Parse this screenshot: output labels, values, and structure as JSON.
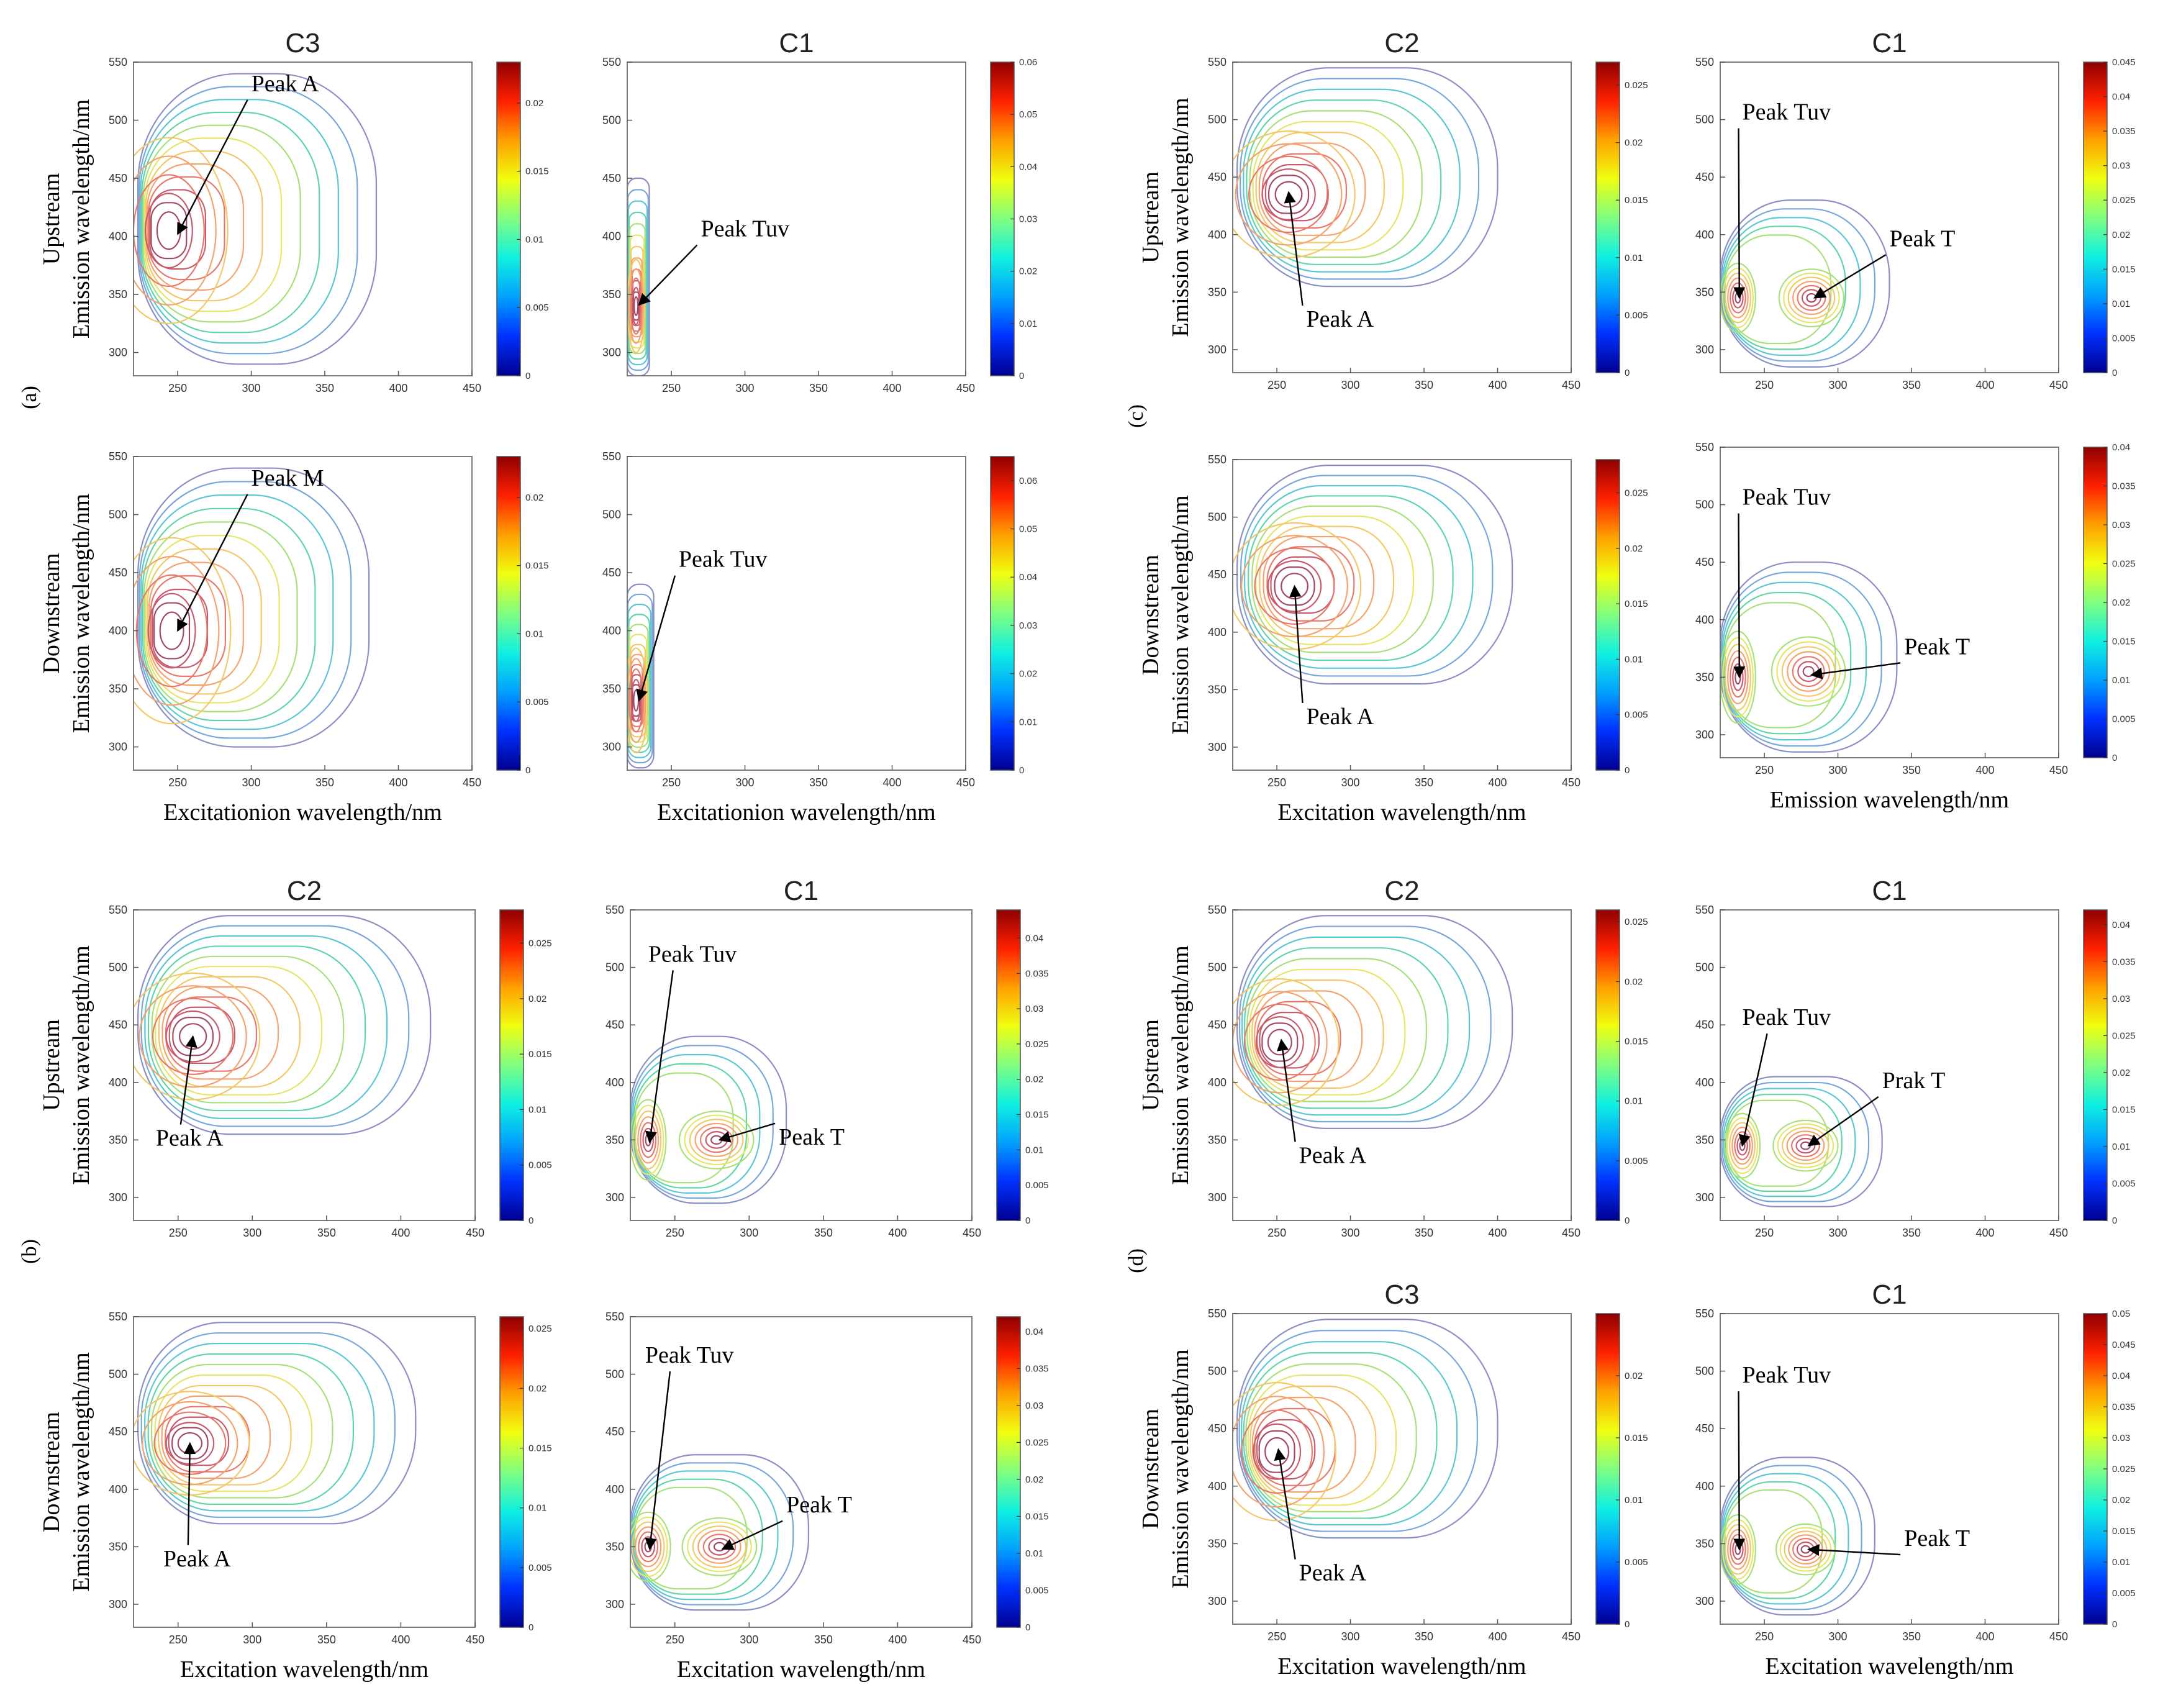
{
  "figure": {
    "background": "#ffffff",
    "group_labels": [
      "(a)",
      "(b)",
      "(c)",
      "(d)"
    ],
    "contour_palette": [
      "#8a8fc4",
      "#7aa6dc",
      "#5cc7d4",
      "#60d6a8",
      "#a9e07a",
      "#e6e56a",
      "#f2c86a",
      "#f4a36e",
      "#e9786c",
      "#c85a6e",
      "#a44a66"
    ],
    "colorbar_colors": [
      "#00008f",
      "#0030ff",
      "#00a0ff",
      "#10f0e0",
      "#80ff80",
      "#f0ff10",
      "#ffa000",
      "#ff2000",
      "#8f0000"
    ]
  },
  "chart_data": [
    {
      "id": "a1",
      "group": "a",
      "type": "contour",
      "title": "C3",
      "row_label": "Upstream",
      "ylabel": "Emission wavelength/nm",
      "xlabel": "",
      "xlim": [
        220,
        450
      ],
      "ylim": [
        280,
        550
      ],
      "xticks": [
        250,
        300,
        350,
        400,
        450
      ],
      "yticks": [
        300,
        350,
        400,
        450,
        500,
        550
      ],
      "colorbar": {
        "range": [
          0,
          0.023
        ],
        "ticks": [
          "0",
          "0.005",
          "0.01",
          "0.015",
          "0.02"
        ]
      },
      "peaks": [
        {
          "x": 244,
          "y": 405,
          "rx": 40,
          "ry": 80
        }
      ],
      "outer": {
        "x0": 223,
        "x1": 385,
        "y0": 290,
        "y1": 540
      },
      "annotations": [
        {
          "text": "Peak A",
          "tx": 300,
          "ty": 525,
          "ax": 250,
          "ay": 402
        }
      ]
    },
    {
      "id": "a2",
      "group": "a",
      "type": "contour",
      "title": "C1",
      "row_label": "",
      "ylabel": "",
      "xlabel": "",
      "xlim": [
        220,
        450
      ],
      "ylim": [
        280,
        550
      ],
      "xticks": [
        250,
        300,
        350,
        400,
        450
      ],
      "yticks": [
        300,
        350,
        400,
        450,
        500,
        550
      ],
      "colorbar": {
        "range": [
          0,
          0.06
        ],
        "ticks": [
          "0",
          "0.01",
          "0.02",
          "0.03",
          "0.04",
          "0.05",
          "0.06"
        ]
      },
      "peaks": [
        {
          "x": 226,
          "y": 340,
          "rx": 6,
          "ry": 40
        }
      ],
      "outer": {
        "x0": 220,
        "x1": 235,
        "y0": 280,
        "y1": 450
      },
      "annotations": [
        {
          "text": "Peak Tuv",
          "tx": 270,
          "ty": 400,
          "ax": 228,
          "ay": 341
        }
      ]
    },
    {
      "id": "a3",
      "group": "a",
      "type": "contour",
      "title": "",
      "row_label": "Downstream",
      "ylabel": "Emission wavelength/nm",
      "xlabel": "Excitationion wavelength/nm",
      "xlim": [
        220,
        450
      ],
      "ylim": [
        280,
        550
      ],
      "xticks": [
        250,
        300,
        350,
        400,
        450
      ],
      "yticks": [
        300,
        350,
        400,
        450,
        500,
        550
      ],
      "colorbar": {
        "range": [
          0,
          0.023
        ],
        "ticks": [
          "0",
          "0.005",
          "0.01",
          "0.015",
          "0.02"
        ]
      },
      "peaks": [
        {
          "x": 246,
          "y": 400,
          "rx": 40,
          "ry": 80
        }
      ],
      "outer": {
        "x0": 223,
        "x1": 380,
        "y0": 300,
        "y1": 540
      },
      "annotations": [
        {
          "text": "Peak M",
          "tx": 300,
          "ty": 525,
          "ax": 250,
          "ay": 400
        }
      ]
    },
    {
      "id": "a4",
      "group": "a",
      "type": "contour",
      "title": "",
      "row_label": "",
      "ylabel": "",
      "xlabel": "Excitationion wavelength/nm",
      "xlim": [
        220,
        450
      ],
      "ylim": [
        280,
        550
      ],
      "xticks": [
        250,
        300,
        350,
        400,
        450
      ],
      "yticks": [
        300,
        350,
        400,
        450,
        500,
        550
      ],
      "colorbar": {
        "range": [
          0,
          0.065
        ],
        "ticks": [
          "0",
          "0.01",
          "0.02",
          "0.03",
          "0.04",
          "0.05",
          "0.06"
        ]
      },
      "peaks": [
        {
          "x": 226,
          "y": 340,
          "rx": 8,
          "ry": 45
        }
      ],
      "outer": {
        "x0": 220,
        "x1": 238,
        "y0": 282,
        "y1": 440
      },
      "annotations": [
        {
          "text": "Peak Tuv",
          "tx": 255,
          "ty": 455,
          "ax": 228,
          "ay": 340
        }
      ]
    },
    {
      "id": "b1",
      "group": "b",
      "type": "contour",
      "title": "C2",
      "row_label": "Upstream",
      "ylabel": "Emission wavelength/nm",
      "xlabel": "",
      "xlim": [
        220,
        450
      ],
      "ylim": [
        280,
        550
      ],
      "xticks": [
        250,
        300,
        350,
        400,
        450
      ],
      "yticks": [
        300,
        350,
        400,
        450,
        500,
        550
      ],
      "colorbar": {
        "range": [
          0,
          0.028
        ],
        "ticks": [
          "0",
          "0.005",
          "0.01",
          "0.015",
          "0.02",
          "0.025"
        ]
      },
      "peaks": [
        {
          "x": 260,
          "y": 440,
          "rx": 45,
          "ry": 55
        }
      ],
      "outer": {
        "x0": 223,
        "x1": 420,
        "y0": 355,
        "y1": 545
      },
      "annotations": [
        {
          "text": "Peak A",
          "tx": 235,
          "ty": 345,
          "ax": 260,
          "ay": 440
        }
      ]
    },
    {
      "id": "b2",
      "group": "b",
      "type": "contour",
      "title": "C1",
      "row_label": "",
      "ylabel": "",
      "xlabel": "",
      "xlim": [
        220,
        450
      ],
      "ylim": [
        280,
        550
      ],
      "xticks": [
        250,
        300,
        350,
        400,
        450
      ],
      "yticks": [
        300,
        350,
        400,
        450,
        500,
        550
      ],
      "colorbar": {
        "range": [
          0,
          0.044
        ],
        "ticks": [
          "0",
          "0.005",
          "0.01",
          "0.015",
          "0.02",
          "0.025",
          "0.03",
          "0.035",
          "0.04"
        ]
      },
      "peaks": [
        {
          "x": 232,
          "y": 350,
          "rx": 12,
          "ry": 35
        },
        {
          "x": 278,
          "y": 350,
          "rx": 25,
          "ry": 25
        }
      ],
      "outer": {
        "x0": 220,
        "x1": 325,
        "y0": 295,
        "y1": 440
      },
      "annotations": [
        {
          "text": "Peak Tuv",
          "tx": 232,
          "ty": 505,
          "ax": 233,
          "ay": 348
        },
        {
          "text": "Peak T",
          "tx": 320,
          "ty": 346,
          "ax": 280,
          "ay": 350
        }
      ]
    },
    {
      "id": "b3",
      "group": "b",
      "type": "contour",
      "title": "",
      "row_label": "Downstream",
      "ylabel": "Emission wavelength/nm",
      "xlabel": "Excitation wavelength/nm",
      "xlim": [
        220,
        450
      ],
      "ylim": [
        280,
        550
      ],
      "xticks": [
        250,
        300,
        350,
        400,
        450
      ],
      "yticks": [
        300,
        350,
        400,
        450,
        500,
        550
      ],
      "colorbar": {
        "range": [
          0,
          0.026
        ],
        "ticks": [
          "0",
          "0.005",
          "0.01",
          "0.015",
          "0.02",
          "0.025"
        ]
      },
      "peaks": [
        {
          "x": 258,
          "y": 440,
          "rx": 40,
          "ry": 45
        }
      ],
      "outer": {
        "x0": 223,
        "x1": 410,
        "y0": 370,
        "y1": 545
      },
      "annotations": [
        {
          "text": "Peak A",
          "tx": 240,
          "ty": 333,
          "ax": 258,
          "ay": 440
        }
      ]
    },
    {
      "id": "b4",
      "group": "b",
      "type": "contour",
      "title": "",
      "row_label": "",
      "ylabel": "",
      "xlabel": "Excitation wavelength/nm",
      "xlim": [
        220,
        450
      ],
      "ylim": [
        280,
        550
      ],
      "xticks": [
        250,
        300,
        350,
        400,
        450
      ],
      "yticks": [
        300,
        350,
        400,
        450,
        500,
        550
      ],
      "colorbar": {
        "range": [
          0,
          0.042
        ],
        "ticks": [
          "0",
          "0.005",
          "0.01",
          "0.015",
          "0.02",
          "0.025",
          "0.03",
          "0.035",
          "0.04"
        ]
      },
      "peaks": [
        {
          "x": 232,
          "y": 350,
          "rx": 15,
          "ry": 30
        },
        {
          "x": 280,
          "y": 350,
          "rx": 25,
          "ry": 25
        }
      ],
      "outer": {
        "x0": 220,
        "x1": 340,
        "y0": 295,
        "y1": 430
      },
      "annotations": [
        {
          "text": "Peak Tuv",
          "tx": 230,
          "ty": 510,
          "ax": 233,
          "ay": 348
        },
        {
          "text": "Peak T",
          "tx": 325,
          "ty": 380,
          "ax": 282,
          "ay": 348
        }
      ]
    },
    {
      "id": "c1",
      "group": "c",
      "type": "contour",
      "title": "C2",
      "row_label": "Upstream",
      "ylabel": "Emission wavelength/nm",
      "xlabel": "",
      "xlim": [
        220,
        450
      ],
      "ylim": [
        280,
        550
      ],
      "xticks": [
        250,
        300,
        350,
        400,
        450
      ],
      "yticks": [
        300,
        350,
        400,
        450,
        500,
        550
      ],
      "colorbar": {
        "range": [
          0,
          0.027
        ],
        "ticks": [
          "0",
          "0.005",
          "0.01",
          "0.015",
          "0.02",
          "0.025"
        ]
      },
      "peaks": [
        {
          "x": 258,
          "y": 435,
          "rx": 45,
          "ry": 55
        }
      ],
      "outer": {
        "x0": 223,
        "x1": 400,
        "y0": 355,
        "y1": 545
      },
      "annotations": [
        {
          "text": "Peak A",
          "tx": 270,
          "ty": 320,
          "ax": 258,
          "ay": 437
        }
      ]
    },
    {
      "id": "c2",
      "group": "c",
      "type": "contour",
      "title": "C1",
      "row_label": "",
      "ylabel": "",
      "xlabel": "",
      "xlim": [
        220,
        450
      ],
      "ylim": [
        280,
        550
      ],
      "xticks": [
        250,
        300,
        350,
        400,
        450
      ],
      "yticks": [
        300,
        350,
        400,
        450,
        500,
        550
      ],
      "colorbar": {
        "range": [
          0,
          0.045
        ],
        "ticks": [
          "0",
          "0.005",
          "0.01",
          "0.015",
          "0.02",
          "0.025",
          "0.03",
          "0.035",
          "0.04",
          "0.045"
        ]
      },
      "peaks": [
        {
          "x": 232,
          "y": 345,
          "rx": 12,
          "ry": 30
        },
        {
          "x": 282,
          "y": 345,
          "rx": 22,
          "ry": 25
        }
      ],
      "outer": {
        "x0": 220,
        "x1": 335,
        "y0": 285,
        "y1": 430
      },
      "annotations": [
        {
          "text": "Peak Tuv",
          "tx": 235,
          "ty": 500,
          "ax": 233,
          "ay": 345
        },
        {
          "text": "Peak T",
          "tx": 335,
          "ty": 390,
          "ax": 284,
          "ay": 345
        }
      ]
    },
    {
      "id": "c3",
      "group": "c",
      "type": "contour",
      "title": "",
      "row_label": "Downstream",
      "ylabel": "Emission wavelength/nm",
      "xlabel": "Excitation wavelength/nm",
      "xlim": [
        220,
        450
      ],
      "ylim": [
        280,
        550
      ],
      "xticks": [
        250,
        300,
        350,
        400,
        450
      ],
      "yticks": [
        300,
        350,
        400,
        450,
        500,
        550
      ],
      "colorbar": {
        "range": [
          0,
          0.028
        ],
        "ticks": [
          "0",
          "0.005",
          "0.01",
          "0.015",
          "0.02",
          "0.025"
        ]
      },
      "peaks": [
        {
          "x": 262,
          "y": 440,
          "rx": 45,
          "ry": 55
        }
      ],
      "outer": {
        "x0": 223,
        "x1": 410,
        "y0": 355,
        "y1": 545
      },
      "annotations": [
        {
          "text": "Peak A",
          "tx": 270,
          "ty": 320,
          "ax": 262,
          "ay": 440
        }
      ]
    },
    {
      "id": "c4",
      "group": "c",
      "type": "contour",
      "title": "",
      "row_label": "",
      "ylabel": "",
      "xlabel": "Emission wavelength/nm",
      "xlim": [
        220,
        450
      ],
      "ylim": [
        280,
        550
      ],
      "xticks": [
        250,
        300,
        350,
        400,
        450
      ],
      "yticks": [
        300,
        350,
        400,
        450,
        500,
        550
      ],
      "colorbar": {
        "range": [
          0,
          0.04
        ],
        "ticks": [
          "0",
          "0.005",
          "0.01",
          "0.015",
          "0.02",
          "0.025",
          "0.03",
          "0.035",
          "0.04"
        ]
      },
      "peaks": [
        {
          "x": 232,
          "y": 350,
          "rx": 12,
          "ry": 40
        },
        {
          "x": 280,
          "y": 355,
          "rx": 25,
          "ry": 30
        }
      ],
      "outer": {
        "x0": 220,
        "x1": 340,
        "y0": 285,
        "y1": 450
      },
      "annotations": [
        {
          "text": "Peak Tuv",
          "tx": 235,
          "ty": 500,
          "ax": 233,
          "ay": 350
        },
        {
          "text": "Peak T",
          "tx": 345,
          "ty": 370,
          "ax": 282,
          "ay": 352
        }
      ]
    },
    {
      "id": "d1",
      "group": "d",
      "type": "contour",
      "title": "C2",
      "row_label": "Upstream",
      "ylabel": "Emission wavelength/nm",
      "xlabel": "",
      "xlim": [
        220,
        450
      ],
      "ylim": [
        280,
        550
      ],
      "xticks": [
        250,
        300,
        350,
        400,
        450
      ],
      "yticks": [
        300,
        350,
        400,
        450,
        500,
        550
      ],
      "colorbar": {
        "range": [
          0,
          0.026
        ],
        "ticks": [
          "0",
          "0.005",
          "0.01",
          "0.015",
          "0.02",
          "0.025"
        ]
      },
      "peaks": [
        {
          "x": 252,
          "y": 435,
          "rx": 40,
          "ry": 55
        }
      ],
      "outer": {
        "x0": 223,
        "x1": 410,
        "y0": 360,
        "y1": 545
      },
      "annotations": [
        {
          "text": "Peak A",
          "tx": 265,
          "ty": 330,
          "ax": 253,
          "ay": 437
        }
      ]
    },
    {
      "id": "d2",
      "group": "d",
      "type": "contour",
      "title": "C1",
      "row_label": "",
      "ylabel": "",
      "xlabel": "",
      "xlim": [
        220,
        450
      ],
      "ylim": [
        280,
        550
      ],
      "xticks": [
        250,
        300,
        350,
        400,
        450
      ],
      "yticks": [
        300,
        350,
        400,
        450,
        500,
        550
      ],
      "colorbar": {
        "range": [
          0,
          0.042
        ],
        "ticks": [
          "0",
          "0.005",
          "0.01",
          "0.015",
          "0.02",
          "0.025",
          "0.03",
          "0.035",
          "0.04"
        ]
      },
      "peaks": [
        {
          "x": 235,
          "y": 345,
          "rx": 12,
          "ry": 28
        },
        {
          "x": 278,
          "y": 345,
          "rx": 22,
          "ry": 22
        }
      ],
      "outer": {
        "x0": 220,
        "x1": 330,
        "y0": 292,
        "y1": 405
      },
      "annotations": [
        {
          "text": "Peak Tuv",
          "tx": 235,
          "ty": 450,
          "ax": 235,
          "ay": 345
        },
        {
          "text": "Prak T",
          "tx": 330,
          "ty": 395,
          "ax": 280,
          "ay": 345
        }
      ]
    },
    {
      "id": "d3",
      "group": "d",
      "type": "contour",
      "title": "C3",
      "row_label": "Downstream",
      "ylabel": "Emission wavelength/nm",
      "xlabel": "Excitation wavelength/nm",
      "xlim": [
        220,
        450
      ],
      "ylim": [
        280,
        550
      ],
      "xticks": [
        250,
        300,
        350,
        400,
        450
      ],
      "yticks": [
        300,
        350,
        400,
        450,
        500,
        550
      ],
      "colorbar": {
        "range": [
          0,
          0.025
        ],
        "ticks": [
          "0",
          "0.005",
          "0.01",
          "0.015",
          "0.02"
        ]
      },
      "peaks": [
        {
          "x": 250,
          "y": 430,
          "rx": 40,
          "ry": 60
        }
      ],
      "outer": {
        "x0": 223,
        "x1": 400,
        "y0": 355,
        "y1": 545
      },
      "annotations": [
        {
          "text": "Peak A",
          "tx": 265,
          "ty": 318,
          "ax": 251,
          "ay": 432
        }
      ]
    },
    {
      "id": "d4",
      "group": "d",
      "type": "contour",
      "title": "C1",
      "row_label": "",
      "ylabel": "",
      "xlabel": "Excitation wavelength/nm",
      "xlim": [
        220,
        450
      ],
      "ylim": [
        280,
        550
      ],
      "xticks": [
        250,
        300,
        350,
        400,
        450
      ],
      "yticks": [
        300,
        350,
        400,
        450,
        500,
        550
      ],
      "colorbar": {
        "range": [
          0,
          0.05
        ],
        "ticks": [
          "0",
          "0.005",
          "0.01",
          "0.015",
          "0.02",
          "0.025",
          "0.03",
          "0.035",
          "0.04",
          "0.045",
          "0.05"
        ]
      },
      "peaks": [
        {
          "x": 232,
          "y": 345,
          "rx": 12,
          "ry": 30
        },
        {
          "x": 278,
          "y": 345,
          "rx": 20,
          "ry": 22
        }
      ],
      "outer": {
        "x0": 220,
        "x1": 325,
        "y0": 288,
        "y1": 425
      },
      "annotations": [
        {
          "text": "Peak Tuv",
          "tx": 235,
          "ty": 490,
          "ax": 233,
          "ay": 345
        },
        {
          "text": "Peak T",
          "tx": 345,
          "ty": 348,
          "ax": 280,
          "ay": 345
        }
      ]
    }
  ]
}
